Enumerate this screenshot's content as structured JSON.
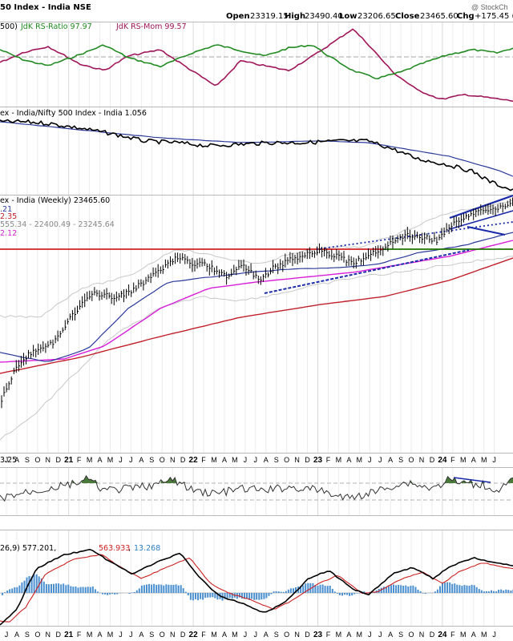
{
  "header": {
    "title": "50 Index - India NSE",
    "open_label": "Open",
    "open": "23319.15",
    "high_label": "High",
    "high": "23490.40",
    "low_label": "Low",
    "low": "23206.65",
    "close_label": "Close",
    "close": "23465.60",
    "chg_label": "Chg",
    "chg": "+175.45 (+0",
    "watermark": "@ StockCh"
  },
  "panels": {
    "rrg": {
      "label_prefix": "500) ",
      "ratio_text": "JdK RS-Ratio 97.97",
      "mom_text": "JdK RS-Mom 99.57",
      "ratio_color": "#228b22",
      "mom_color": "#a0165a"
    },
    "ratio": {
      "label": "ex - India/Nifty 500 Index - India 1.056"
    },
    "price": {
      "label": "ex - India (Weekly) 23465.60",
      "leg1": ".21",
      "leg2": "2.35",
      "leg3": "555.34 - 22400.49 - 23245.64",
      "leg4": "2.12"
    },
    "rsi": {
      "label": "3.25"
    },
    "macd": {
      "label_prefix": "26,9) 577.201, ",
      "macd_val": "563.933",
      "sep": ", ",
      "hist_val": "13.268"
    }
  },
  "x_axis": {
    "labels": [
      "J",
      "A",
      "S",
      "O",
      "N",
      "D",
      "21",
      "F",
      "M",
      "A",
      "M",
      "J",
      "J",
      "A",
      "S",
      "O",
      "N",
      "D",
      "22",
      "F",
      "M",
      "A",
      "M",
      "J",
      "J",
      "A",
      "S",
      "O",
      "N",
      "D",
      "23",
      "F",
      "M",
      "A",
      "M",
      "J",
      "J",
      "A",
      "S",
      "O",
      "N",
      "D",
      "24",
      "F",
      "M",
      "A",
      "M",
      "J"
    ],
    "bold_labels": [
      "21",
      "22",
      "23",
      "24"
    ]
  },
  "colors": {
    "price": "#000000",
    "ema_blue": "#2b3a9a",
    "ema_magenta": "#d81ed8",
    "ema_red": "#c0202a",
    "support_red": "#cc0000",
    "support_green": "#008800",
    "trend_blue": "#1a2aa8",
    "hist": "#4a8fd0",
    "rsi_fill": "#4a7a3a"
  },
  "chart_data": {
    "type": "line",
    "title": "50 Index - India NSE",
    "frequency": "weekly",
    "date_range": [
      "2020-06",
      "2024-06"
    ],
    "price": {
      "open": 23319.15,
      "high": 23490.4,
      "low": 23206.65,
      "close": 23465.6,
      "change": 175.45
    },
    "rs_ratio": 97.97,
    "rs_momentum": 99.57,
    "relative_ratio": 1.056,
    "macd": {
      "macd": 577.201,
      "signal": 563.933,
      "histogram": 13.268,
      "params": "26,9"
    },
    "series": [
      {
        "name": "JdK RS-Ratio",
        "last": 97.97
      },
      {
        "name": "JdK RS-Mom",
        "last": 99.57
      }
    ]
  }
}
